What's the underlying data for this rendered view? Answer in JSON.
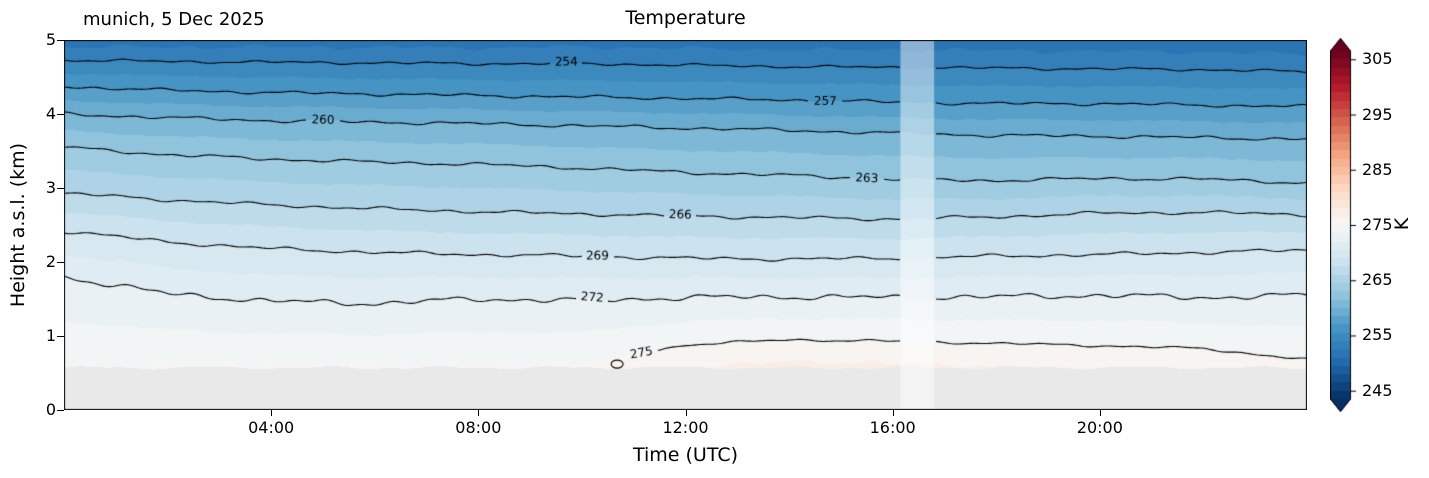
{
  "chart_data": {
    "type": "heatmap",
    "variant": "filled-contour-time-height-section",
    "title": "Temperature",
    "annotation": "munich, 5 Dec 2025",
    "xlabel": "Time (UTC)",
    "ylabel": "Height a.s.l. (km)",
    "units": "K",
    "xlim_hours": [
      0,
      24
    ],
    "ylim_km": [
      0,
      5
    ],
    "x_ticks": [
      {
        "hour": 4,
        "label": "04:00"
      },
      {
        "hour": 8,
        "label": "08:00"
      },
      {
        "hour": 12,
        "label": "12:00"
      },
      {
        "hour": 16,
        "label": "16:00"
      },
      {
        "hour": 20,
        "label": "20:00"
      }
    ],
    "y_ticks": [
      0,
      1,
      2,
      3,
      4,
      5
    ],
    "fill_step_K": 1.5,
    "line_step_K": 3,
    "time_samples_h": [
      0,
      2,
      4,
      6,
      8,
      10,
      12,
      14,
      16,
      18,
      20,
      22,
      24
    ],
    "contour_lines": [
      {
        "level_K": 275,
        "heights_km": [
          0.6,
          0.59,
          0.6,
          0.6,
          0.6,
          0.62,
          0.88,
          0.95,
          0.93,
          0.9,
          0.87,
          0.83,
          0.68
        ],
        "label_hour": 11.15,
        "wiggle_km": 0.022,
        "draw_from_hour": 10.95,
        "closed_blob": {
          "hour": 10.68,
          "km": 0.62
        }
      },
      {
        "level_K": 272,
        "heights_km": [
          1.8,
          1.57,
          1.47,
          1.44,
          1.5,
          1.48,
          1.52,
          1.53,
          1.52,
          1.53,
          1.55,
          1.52,
          1.55
        ],
        "label_hour": 10.2,
        "wiggle_km": 0.05
      },
      {
        "level_K": 269,
        "heights_km": [
          2.42,
          2.27,
          2.18,
          2.13,
          2.1,
          2.08,
          2.05,
          2.04,
          2.05,
          2.08,
          2.1,
          2.13,
          2.16
        ],
        "label_hour": 10.3,
        "wiggle_km": 0.032
      },
      {
        "level_K": 266,
        "heights_km": [
          2.93,
          2.84,
          2.77,
          2.72,
          2.68,
          2.65,
          2.62,
          2.6,
          2.58,
          2.61,
          2.66,
          2.67,
          2.64
        ],
        "label_hour": 11.9,
        "wiggle_km": 0.03
      },
      {
        "level_K": 263,
        "heights_km": [
          3.55,
          3.45,
          3.39,
          3.35,
          3.32,
          3.27,
          3.21,
          3.17,
          3.12,
          3.1,
          3.13,
          3.12,
          3.07
        ],
        "label_hour": 15.5,
        "wiggle_km": 0.03
      },
      {
        "level_K": 260,
        "heights_km": [
          4.0,
          3.95,
          3.91,
          3.89,
          3.87,
          3.84,
          3.81,
          3.78,
          3.74,
          3.71,
          3.7,
          3.68,
          3.66
        ],
        "label_hour": 5.0,
        "wiggle_km": 0.03
      },
      {
        "level_K": 257,
        "heights_km": [
          4.37,
          4.32,
          4.29,
          4.27,
          4.25,
          4.23,
          4.21,
          4.19,
          4.16,
          4.14,
          4.14,
          4.12,
          4.1
        ],
        "label_hour": 14.7,
        "wiggle_km": 0.028
      },
      {
        "level_K": 254,
        "heights_km": [
          4.73,
          4.71,
          4.7,
          4.69,
          4.68,
          4.68,
          4.66,
          4.64,
          4.63,
          4.62,
          4.61,
          4.6,
          4.57
        ],
        "label_hour": 9.7,
        "wiggle_km": 0.025
      }
    ],
    "no_data_below_km": 0.57,
    "no_data_color": "#e9e9e9",
    "missing_data_hours": [
      16.15,
      16.8
    ],
    "missing_band_alpha": 0.45,
    "colorbar": {
      "label": "K",
      "ticks": [
        245,
        255,
        265,
        275,
        285,
        295,
        305
      ],
      "vmin": 243.5,
      "vmax": 306.5,
      "extend": "both"
    },
    "colormap": {
      "name": "RdBu_r",
      "stops": [
        [
          0.0,
          "#053061"
        ],
        [
          0.1,
          "#2166ac"
        ],
        [
          0.2,
          "#4393c3"
        ],
        [
          0.3,
          "#92c5de"
        ],
        [
          0.4,
          "#d1e5f0"
        ],
        [
          0.5,
          "#f7f7f7"
        ],
        [
          0.6,
          "#fddbc7"
        ],
        [
          0.7,
          "#f4a582"
        ],
        [
          0.8,
          "#d6604d"
        ],
        [
          0.9,
          "#b2182b"
        ],
        [
          1.0,
          "#67001f"
        ]
      ]
    }
  }
}
